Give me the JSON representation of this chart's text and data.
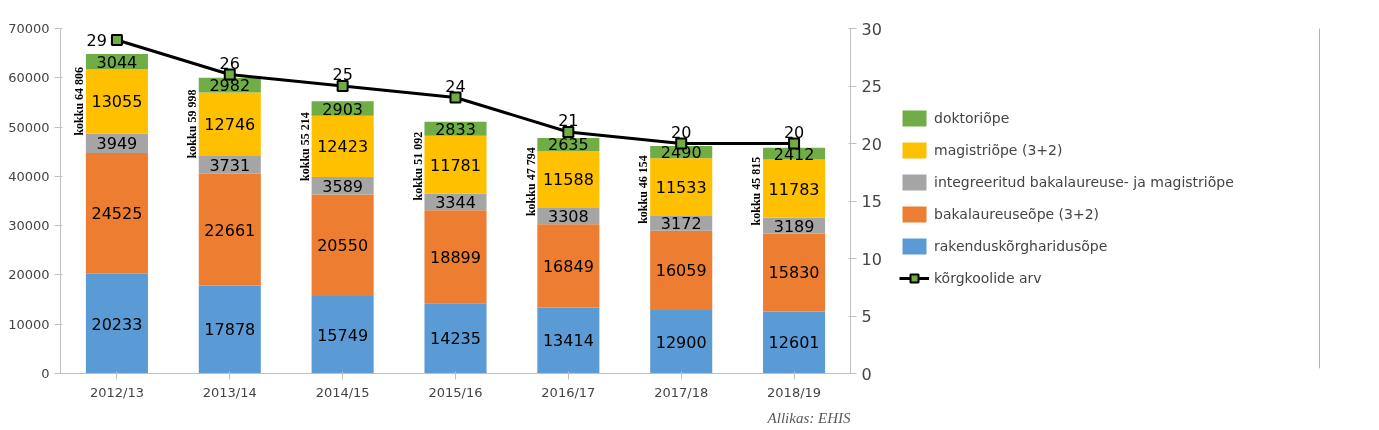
{
  "chart_data": {
    "type": "bar",
    "stacked": true,
    "categories": [
      "2012/13",
      "2013/14",
      "2014/15",
      "2015/16",
      "2016/17",
      "2017/18",
      "2018/19"
    ],
    "series": [
      {
        "name": "rakenduskõrgharidusõpe",
        "color": "#5b9bd5",
        "values": [
          20233,
          17878,
          15749,
          14235,
          13414,
          12900,
          12601
        ]
      },
      {
        "name": "bakalaureuseõpe (3+2)",
        "color": "#ed7d31",
        "values": [
          24525,
          22661,
          20550,
          18899,
          16849,
          16059,
          15830
        ]
      },
      {
        "name": "integreeritud bakalaureuse- ja magistriõpe",
        "color": "#a5a5a5",
        "values": [
          3949,
          3731,
          3589,
          3344,
          3308,
          3172,
          3189
        ]
      },
      {
        "name": "magistriõpe (3+2)",
        "color": "#ffc000",
        "values": [
          13055,
          12746,
          12423,
          11781,
          11588,
          11533,
          11783
        ]
      },
      {
        "name": "doktoriõpe",
        "color": "#70ad47",
        "values": [
          3044,
          2982,
          2903,
          2833,
          2635,
          2490,
          2412
        ]
      },
      {
        "name": "kõrgkoolide arv",
        "type": "line",
        "axis": "y2",
        "color": "#000000",
        "marker": "square",
        "line_style": "solid",
        "values": [
          29,
          26,
          25,
          24,
          21,
          20,
          20
        ]
      }
    ],
    "totals": [
      "kokku 64 806",
      "kokku 59 998",
      "kokku 55 214",
      "kokku 51 092",
      "kokku 47 794",
      "kokku 46 154",
      "kokku 45 815"
    ],
    "ylim": [
      0,
      70000
    ],
    "yticks": [
      0,
      10000,
      20000,
      30000,
      40000,
      50000,
      60000,
      70000
    ],
    "y2lim": [
      0,
      30
    ],
    "y2ticks": [
      0,
      5,
      10,
      15,
      20,
      25,
      30
    ],
    "data_labels": true,
    "grid": false,
    "legend": "right",
    "annotations": [
      "Allikas: EHIS"
    ]
  }
}
